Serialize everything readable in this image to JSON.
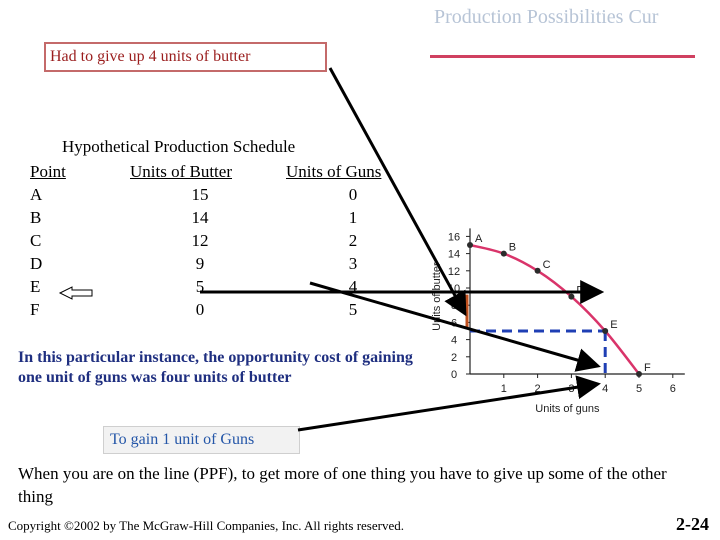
{
  "slide": {
    "title": "Production Possibilities Cur",
    "callout": "Had to give up 4 units of butter",
    "table_caption": "Hypothetical Production Schedule",
    "explanation": "In this particular instance, the opportunity cost of gaining one unit of guns was four units  of butter",
    "gain_label": "To gain 1 unit of Guns",
    "bottom_text": "When you are on the line (PPF), to get more of one thing you have to give up some of the other thing",
    "copyright": "Copyright 2002 by The McGraw-Hill Companies, Inc.  All rights reserved.",
    "copyright_symbol": "©",
    "slide_number": "2-24"
  },
  "table": {
    "headers": [
      "Point",
      "Units of Butter",
      "Units of Guns"
    ],
    "rows": [
      [
        "A",
        "15",
        "0"
      ],
      [
        "B",
        "14",
        "1"
      ],
      [
        "C",
        "12",
        "2"
      ],
      [
        "D",
        "9",
        "3"
      ],
      [
        "E",
        "5",
        "4"
      ],
      [
        "F",
        "0",
        "5"
      ]
    ]
  },
  "chart_data": {
    "type": "line",
    "xlabel": "Units of guns",
    "ylabel": "Units of butter",
    "xlim": [
      0,
      6
    ],
    "ylim": [
      0,
      16
    ],
    "x_ticks": [
      "1",
      "2",
      "3",
      "4",
      "5",
      "6"
    ],
    "y_ticks": [
      "0",
      "2",
      "4",
      "6",
      "8",
      "10",
      "12",
      "14",
      "16"
    ],
    "points": [
      {
        "label": "A",
        "x": 0,
        "y": 15
      },
      {
        "label": "B",
        "x": 1,
        "y": 14
      },
      {
        "label": "C",
        "x": 2,
        "y": 12
      },
      {
        "label": "D",
        "x": 3,
        "y": 9
      },
      {
        "label": "E",
        "x": 4,
        "y": 5
      },
      {
        "label": "F",
        "x": 5,
        "y": 0
      }
    ],
    "grid": false,
    "colors": {
      "curve": "#d9346a",
      "point": "#2b2b2b",
      "highlight_butter": "#c0501e",
      "highlight_guns": "#1f3fb4",
      "arrow": "#000000"
    }
  }
}
